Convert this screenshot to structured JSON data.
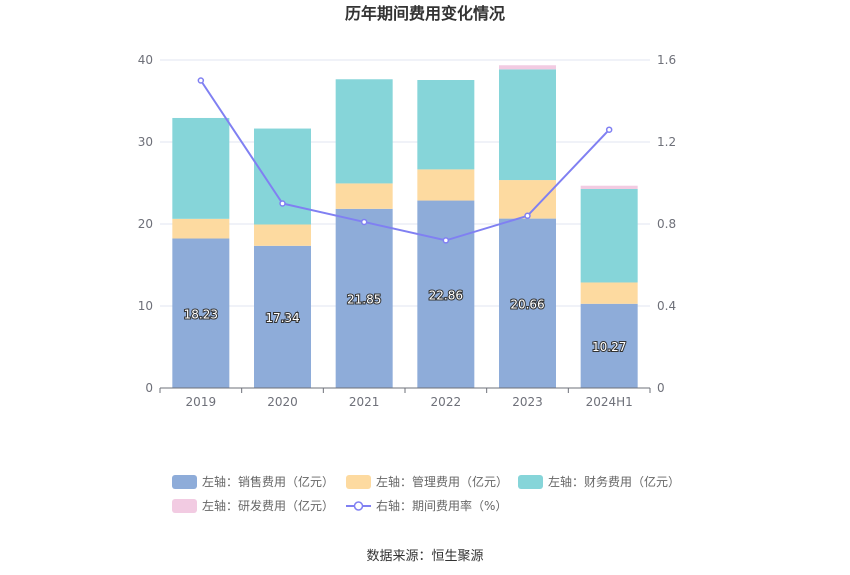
{
  "chart_data": {
    "type": "bar",
    "title": "历年期间费用变化情况",
    "categories": [
      "2019",
      "2020",
      "2021",
      "2022",
      "2023",
      "2024H1"
    ],
    "left_axis": {
      "ylim": [
        0,
        40
      ],
      "ticks": [
        "0",
        "10",
        "20",
        "30",
        "40"
      ]
    },
    "right_axis": {
      "ylim": [
        0,
        1.6
      ],
      "ticks": [
        "0",
        "0.4",
        "0.8",
        "1.2",
        "1.6"
      ]
    },
    "grid": true,
    "stacked": true,
    "series": [
      {
        "name": "左轴：销售费用（亿元）",
        "type": "bar",
        "axis": "left",
        "color": "#8eacd9",
        "values": [
          18.23,
          17.34,
          21.85,
          22.86,
          20.66,
          10.27
        ],
        "labels": [
          "18.23",
          "17.34",
          "21.85",
          "22.86",
          "20.66",
          "10.27"
        ]
      },
      {
        "name": "左轴：管理费用（亿元）",
        "type": "bar",
        "axis": "left",
        "color": "#fddaa0",
        "values": [
          2.4,
          2.6,
          3.1,
          3.8,
          4.7,
          2.6
        ]
      },
      {
        "name": "左轴：财务费用（亿元）",
        "type": "bar",
        "axis": "left",
        "color": "#86d5d9",
        "values": [
          12.3,
          11.7,
          12.7,
          10.9,
          13.5,
          11.4
        ]
      },
      {
        "name": "左轴：研发费用（亿元）",
        "type": "bar",
        "axis": "left",
        "color": "#f2cbe2",
        "values": [
          0,
          0,
          0,
          0,
          0.5,
          0.4
        ]
      },
      {
        "name": "右轴：期间费用率（%）",
        "type": "line",
        "axis": "right",
        "color": "#8080f2",
        "values": [
          1.5,
          0.9,
          0.81,
          0.72,
          0.84,
          1.26
        ]
      }
    ],
    "legend_position": "bottom"
  },
  "footer": {
    "source": "数据来源：恒生聚源"
  }
}
